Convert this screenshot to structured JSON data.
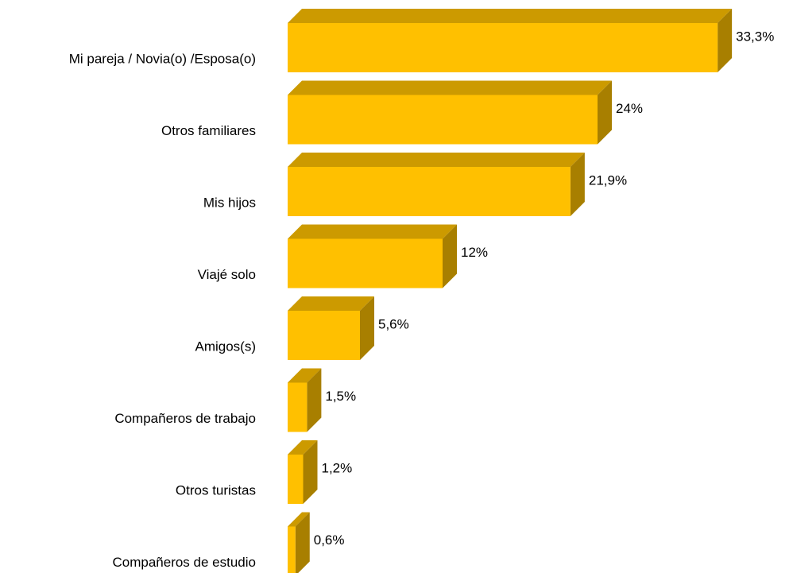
{
  "chart_data": {
    "type": "bar",
    "orientation": "horizontal",
    "categories": [
      "Mi pareja / Novia(o) /Esposa(o)",
      "Otros familiares",
      "Mis hijos",
      "Viajé solo",
      "Amigos(s)",
      "Compañeros de trabajo",
      "Otros turistas",
      "Compañeros de estudio"
    ],
    "values": [
      33.3,
      24,
      21.9,
      12,
      5.6,
      1.5,
      1.2,
      0.6
    ],
    "value_labels": [
      "33,3%",
      "24%",
      "21,9%",
      "12%",
      "5,6%",
      "1,5%",
      "1,2%",
      "0,6%"
    ],
    "color": "#ffc000",
    "three_d": true
  }
}
